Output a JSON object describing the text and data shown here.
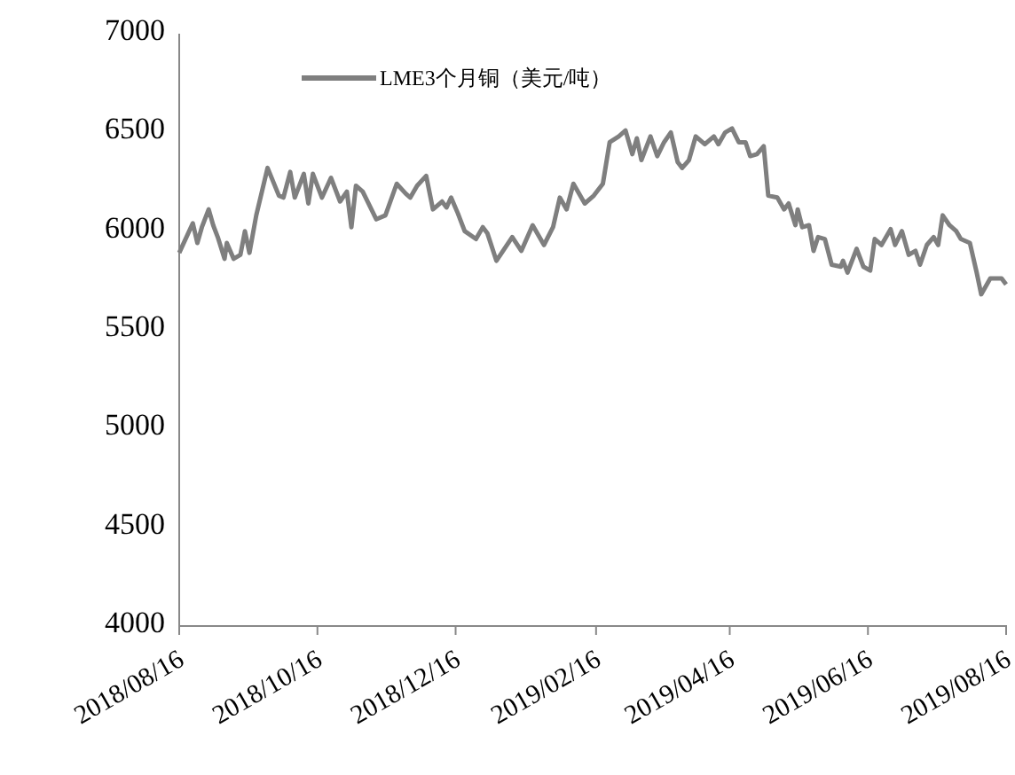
{
  "chart_data": {
    "type": "line",
    "legend": "top left",
    "marker": "none",
    "line_style": "solid",
    "grid": false,
    "xlim": [
      "2018-08-16",
      "2019-08-16"
    ],
    "xticks": [
      {
        "value": "2018-08-16",
        "label": "2018/08/16"
      },
      {
        "value": "2018-10-16",
        "label": "2018/10/16"
      },
      {
        "value": "2018-12-16",
        "label": "2018/12/16"
      },
      {
        "value": "2019-02-16",
        "label": "2019/02/16"
      },
      {
        "value": "2019-04-16",
        "label": "2019/04/16"
      },
      {
        "value": "2019-06-16",
        "label": "2019/06/16"
      },
      {
        "value": "2019-08-16",
        "label": "2019/08/16"
      }
    ],
    "ylim": [
      4000,
      7000
    ],
    "yticks": [
      4000,
      4500,
      5000,
      5500,
      6000,
      6500,
      7000
    ],
    "x": [
      "2018-08-16",
      "2018-08-22",
      "2018-08-24",
      "2018-08-26",
      "2018-08-29",
      "2018-08-31",
      "2018-09-02",
      "2018-09-05",
      "2018-09-06",
      "2018-09-09",
      "2018-09-12",
      "2018-09-14",
      "2018-09-16",
      "2018-09-19",
      "2018-09-24",
      "2018-09-29",
      "2018-10-01",
      "2018-10-04",
      "2018-10-06",
      "2018-10-10",
      "2018-10-12",
      "2018-10-14",
      "2018-10-18",
      "2018-10-22",
      "2018-10-26",
      "2018-10-29",
      "2018-10-31",
      "2018-11-02",
      "2018-11-05",
      "2018-11-11",
      "2018-11-15",
      "2018-11-20",
      "2018-11-24",
      "2018-11-26",
      "2018-11-29",
      "2018-12-03",
      "2018-12-06",
      "2018-12-10",
      "2018-12-12",
      "2018-12-14",
      "2018-12-17",
      "2018-12-20",
      "2018-12-25",
      "2018-12-28",
      "2018-12-30",
      "2019-01-03",
      "2019-01-10",
      "2019-01-14",
      "2019-01-19",
      "2019-01-24",
      "2019-01-28",
      "2019-01-31",
      "2019-02-03",
      "2019-02-06",
      "2019-02-11",
      "2019-02-15",
      "2019-02-19",
      "2019-02-22",
      "2019-02-26",
      "2019-03-01",
      "2019-03-04",
      "2019-03-06",
      "2019-03-08",
      "2019-03-12",
      "2019-03-15",
      "2019-03-18",
      "2019-03-21",
      "2019-03-24",
      "2019-03-26",
      "2019-03-29",
      "2019-04-01",
      "2019-04-05",
      "2019-04-09",
      "2019-04-11",
      "2019-04-14",
      "2019-04-17",
      "2019-04-20",
      "2019-04-23",
      "2019-04-25",
      "2019-04-28",
      "2019-05-01",
      "2019-05-03",
      "2019-05-07",
      "2019-05-10",
      "2019-05-12",
      "2019-05-15",
      "2019-05-16",
      "2019-05-18",
      "2019-05-21",
      "2019-05-23",
      "2019-05-25",
      "2019-05-28",
      "2019-05-31",
      "2019-06-04",
      "2019-06-05",
      "2019-06-07",
      "2019-06-11",
      "2019-06-14",
      "2019-06-17",
      "2019-06-19",
      "2019-06-22",
      "2019-06-26",
      "2019-06-28",
      "2019-07-01",
      "2019-07-04",
      "2019-07-07",
      "2019-07-09",
      "2019-07-12",
      "2019-07-15",
      "2019-07-17",
      "2019-07-19",
      "2019-07-22",
      "2019-07-25",
      "2019-07-27",
      "2019-07-31",
      "2019-08-03",
      "2019-08-05",
      "2019-08-09",
      "2019-08-12",
      "2019-08-14",
      "2019-08-16"
    ],
    "series": [
      {
        "name": "LME3个月铜（美元/吨）",
        "color": "#7f7f7f",
        "values": [
          5890,
          6040,
          5940,
          6020,
          6110,
          6030,
          5970,
          5860,
          5940,
          5860,
          5880,
          6000,
          5890,
          6080,
          6320,
          6180,
          6170,
          6300,
          6170,
          6290,
          6140,
          6290,
          6170,
          6270,
          6150,
          6200,
          6020,
          6230,
          6200,
          6060,
          6080,
          6240,
          6190,
          6170,
          6230,
          6280,
          6110,
          6150,
          6120,
          6170,
          6090,
          6000,
          5960,
          6020,
          5990,
          5850,
          5970,
          5900,
          6030,
          5930,
          6020,
          6170,
          6110,
          6240,
          6140,
          6180,
          6240,
          6450,
          6480,
          6510,
          6390,
          6470,
          6360,
          6480,
          6380,
          6450,
          6500,
          6350,
          6320,
          6360,
          6480,
          6440,
          6480,
          6440,
          6500,
          6520,
          6450,
          6450,
          6380,
          6390,
          6430,
          6180,
          6170,
          6110,
          6140,
          6030,
          6110,
          6020,
          6030,
          5900,
          5970,
          5960,
          5830,
          5820,
          5850,
          5790,
          5910,
          5820,
          5800,
          5960,
          5930,
          6010,
          5930,
          6000,
          5880,
          5900,
          5830,
          5930,
          5970,
          5930,
          6080,
          6030,
          6000,
          5960,
          5940,
          5790,
          5680,
          5760,
          5760,
          5760,
          5730
        ]
      }
    ]
  }
}
